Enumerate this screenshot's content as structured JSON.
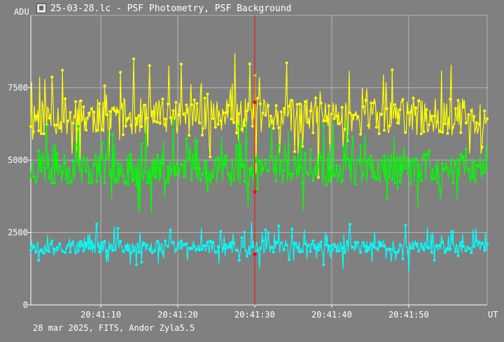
{
  "window": {
    "title": "25-03-28.lc - PSF Photometry, PSF Background",
    "footer": "28 mar 2025, FITS, Andor Zyla5.5"
  },
  "colors": {
    "background": "#808080",
    "grid": "#b4b4b4",
    "axis": "#ffffff",
    "cursor": "#ff0000"
  },
  "chart_data": {
    "type": "line",
    "y_unit_label": "ADU",
    "x_unit_label": "UT",
    "ylim": [
      0,
      10000
    ],
    "xlim_seconds": [
      0,
      59.3
    ],
    "y_ticks": [
      {
        "value": 0,
        "label": "0"
      },
      {
        "value": 2500,
        "label": "2500"
      },
      {
        "value": 5000,
        "label": "5000"
      },
      {
        "value": 7500,
        "label": "7500"
      }
    ],
    "x_ticks": [
      {
        "value": 9.1,
        "label": "20:41:10"
      },
      {
        "value": 19.1,
        "label": "20:41:20"
      },
      {
        "value": 29.1,
        "label": "20:41:30"
      },
      {
        "value": 39.1,
        "label": "20:41:40"
      },
      {
        "value": 49.1,
        "label": "20:41:50"
      }
    ],
    "grid": true,
    "cursor_time": 29.1,
    "series": [
      {
        "color": "#ffff00",
        "mean": 6500,
        "spread": 650,
        "spikes": 1500,
        "seed": 11
      },
      {
        "color": "#00ff00",
        "mean": 4700,
        "spread": 550,
        "spikes": 1200,
        "seed": 23
      },
      {
        "color": "#00ffff",
        "mean": 2000,
        "spread": 220,
        "spikes": 700,
        "seed": 37
      }
    ],
    "n_points": 520,
    "cursor_values": [
      7000,
      3900,
      1750
    ]
  }
}
